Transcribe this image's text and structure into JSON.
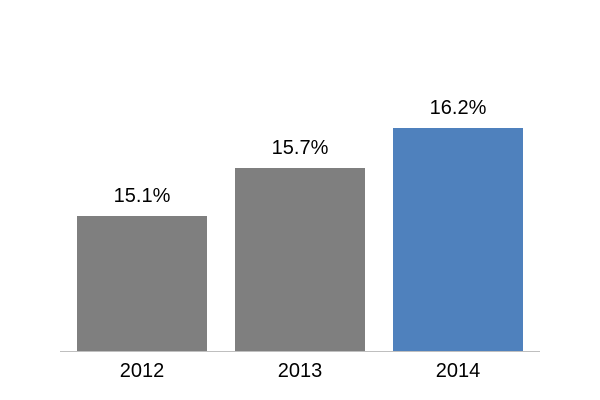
{
  "chart_data": {
    "type": "bar",
    "title": "",
    "xlabel": "",
    "ylabel": "",
    "categories": [
      "2012",
      "2013",
      "2014"
    ],
    "values": [
      15.1,
      15.7,
      16.2
    ],
    "data_labels": [
      "15.1%",
      "15.7%",
      "16.2%"
    ],
    "ylim": [
      13.4,
      16.2
    ],
    "grid": false,
    "legend_position": "none",
    "bar_colors": [
      "#7f7f7f",
      "#7f7f7f",
      "#4f81bd"
    ]
  },
  "colors": {
    "gray_bar": "#7f7f7f",
    "highlight_bar": "#4f81bd",
    "axis_line": "#bfbfbf",
    "label_text": "#000000",
    "background": "#ffffff"
  }
}
